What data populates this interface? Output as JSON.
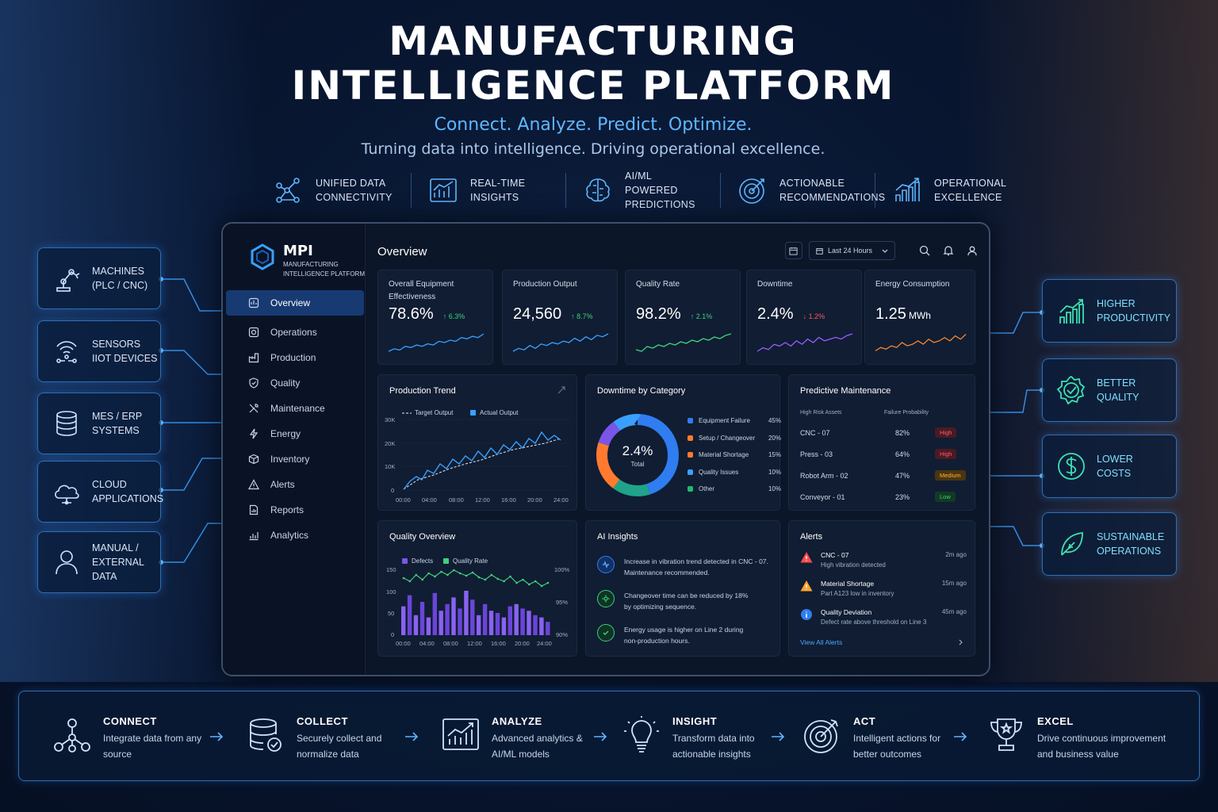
{
  "page": {
    "title_line1": "MANUFACTURING",
    "title_line2": "INTELLIGENCE PLATFORM",
    "tagline": "Connect. Analyze. Predict. Optimize.",
    "subtitle": "Turning data into intelligence. Driving operational excellence."
  },
  "features": [
    {
      "icon": "network-icon",
      "label": "Unified Data Connectivity"
    },
    {
      "icon": "bar-chart-icon",
      "label": "Real-Time Insights"
    },
    {
      "icon": "brain-icon",
      "label": "AI/ML Powered Predictions"
    },
    {
      "icon": "target-icon",
      "label": "Actionable Recommendations"
    },
    {
      "icon": "growth-chart-icon",
      "label": "Operational Excellence"
    }
  ],
  "sources": [
    {
      "icon": "robot-arm-icon",
      "label1": "MACHINES",
      "label2": "(PLC / CNC)"
    },
    {
      "icon": "sensor-icon",
      "label1": "SENSORS",
      "label2": "IIoT DEVICES"
    },
    {
      "icon": "database-icon",
      "label1": "MES / ERP",
      "label2": "SYSTEMS"
    },
    {
      "icon": "cloud-icon",
      "label1": "CLOUD",
      "label2": "APPLICATIONS"
    },
    {
      "icon": "user-icon",
      "label1": "MANUAL /",
      "label2": "EXTERNAL DATA"
    }
  ],
  "benefits": [
    {
      "icon": "growth-icon",
      "label1": "HIGHER",
      "label2": "PRODUCTIVITY"
    },
    {
      "icon": "quality-badge-icon",
      "label1": "BETTER",
      "label2": "QUALITY"
    },
    {
      "icon": "dollar-icon",
      "label1": "LOWER",
      "label2": "COSTS"
    },
    {
      "icon": "leaf-icon",
      "label1": "SUSTAINABLE",
      "label2": "OPERATIONS"
    }
  ],
  "dashboard": {
    "logo": {
      "name": "MPI",
      "line1": "MANUFACTURING",
      "line2": "INTELLIGENCE PLATFORM"
    },
    "nav": [
      "Overview",
      "Operations",
      "Production",
      "Quality",
      "Maintenance",
      "Energy",
      "Inventory",
      "Alerts",
      "Reports",
      "Analytics"
    ],
    "active_nav": "Overview",
    "header": {
      "title": "Overview",
      "range": "Last 24 Hours"
    },
    "kpis": [
      {
        "title": "Overall Equipment Effectiveness",
        "value": "78.6%",
        "unit": "",
        "delta": "↑ 6.3%",
        "delta_color": "#3fd07a",
        "spark_color": "#3aa0ff",
        "spark": [
          4,
          6,
          5,
          8,
          7,
          9,
          8,
          10,
          9,
          12,
          11,
          13,
          12,
          15,
          14,
          16,
          15,
          18
        ]
      },
      {
        "title": "Production Output",
        "value": "24,560",
        "unit": "",
        "delta": "↑ 8.7%",
        "delta_color": "#3fd07a",
        "spark_color": "#3aa0ff",
        "spark": [
          5,
          7,
          6,
          9,
          7,
          10,
          9,
          11,
          10,
          12,
          11,
          14,
          12,
          15,
          13,
          16,
          15,
          17
        ]
      },
      {
        "title": "Quality Rate",
        "value": "98.2%",
        "unit": "",
        "delta": "↑ 2.1%",
        "delta_color": "#3fd07a",
        "spark_color": "#3fd07a",
        "spark": [
          6,
          5,
          8,
          7,
          9,
          8,
          10,
          9,
          11,
          10,
          12,
          11,
          13,
          12,
          14,
          13,
          15,
          16
        ]
      },
      {
        "title": "Downtime",
        "value": "2.4%",
        "unit": "",
        "delta": "↓ 1.2%",
        "delta_color": "#ff5a5a",
        "spark_color": "#9b5cff",
        "spark": [
          5,
          7,
          6,
          9,
          8,
          10,
          8,
          11,
          9,
          12,
          10,
          13,
          11,
          12,
          13,
          12,
          14,
          15
        ]
      },
      {
        "title": "Energy Consumption",
        "value": "1.25",
        "unit": "MWh",
        "delta": "",
        "delta_color": "#3fd07a",
        "spark_color": "#ff8a2b",
        "spark": [
          6,
          8,
          7,
          9,
          8,
          11,
          9,
          10,
          12,
          10,
          13,
          11,
          12,
          14,
          12,
          15,
          13,
          16
        ]
      }
    ],
    "production_trend": {
      "title": "Production Trend",
      "legend_target": "Target Output",
      "legend_actual": "Actual Output",
      "y_ticks": [
        "30K",
        "20K",
        "10K",
        "0"
      ],
      "x_ticks": [
        "00:00",
        "04:00",
        "08:00",
        "12:00",
        "16:00",
        "20:00",
        "24:00"
      ]
    },
    "downtime": {
      "title": "Downtime by Category",
      "center_value": "2.4%",
      "center_label": "Total",
      "items": [
        {
          "name": "Equipment Failure",
          "pct": "45%",
          "color": "#2f7df0"
        },
        {
          "name": "Setup / Changeover",
          "pct": "20%",
          "color": "#ff7a2f"
        },
        {
          "name": "Material Shortage",
          "pct": "15%",
          "color": "#1fa38a"
        },
        {
          "name": "Quality Issues",
          "pct": "10%",
          "color": "#7a55e8"
        },
        {
          "name": "Other",
          "pct": "10%",
          "color": "#22b86f"
        }
      ]
    },
    "predictive": {
      "title": "Predictive Maintenance",
      "col1": "High Risk Assets",
      "col2": "Failure Probability",
      "rows": [
        {
          "asset": "CNC - 07",
          "prob": "82%",
          "risk": "High",
          "bg": "#4a1a24",
          "fg": "#ff5a6a"
        },
        {
          "asset": "Press - 03",
          "prob": "64%",
          "risk": "High",
          "bg": "#4a1a24",
          "fg": "#ff5a6a"
        },
        {
          "asset": "Robot Arm - 02",
          "prob": "47%",
          "risk": "Medium",
          "bg": "#4a3510",
          "fg": "#ffb23a"
        },
        {
          "asset": "Conveyor - 01",
          "prob": "23%",
          "risk": "Low",
          "bg": "#123a25",
          "fg": "#3fd07a"
        }
      ]
    },
    "quality_overview": {
      "title": "Quality Overview",
      "legend_defects": "Defects",
      "legend_rate": "Quality Rate",
      "y_left": [
        "150",
        "100",
        "50",
        "0"
      ],
      "y_right": [
        "100%",
        "95%",
        "90%"
      ],
      "x_ticks": [
        "00:00",
        "04:00",
        "08:00",
        "12:00",
        "16:00",
        "20:00",
        "24:00"
      ]
    },
    "ai_insights": {
      "title": "AI Insights",
      "items": [
        {
          "line1": "Increase in vibration trend detected in CNC - 07.",
          "line2": "Maintenance recommended.",
          "icon": "vibration-icon",
          "color": "#2f7df0"
        },
        {
          "line1": "Changeover time can be reduced by 18%",
          "line2": "by optimizing sequence.",
          "icon": "gear-icon",
          "color": "#3fd07a"
        },
        {
          "line1": "Energy usage is higher on Line 2 during",
          "line2": "non-production hours.",
          "icon": "check-icon",
          "color": "#3fd07a"
        }
      ]
    },
    "alerts": {
      "title": "Alerts",
      "items": [
        {
          "title": "CNC - 07",
          "desc": "High vibration detected",
          "time": "2m ago",
          "icon": "warning-icon",
          "color": "#ff4a4a"
        },
        {
          "title": "Material Shortage",
          "desc": "Part A123 low in inventory",
          "time": "15m ago",
          "icon": "warning-icon",
          "color": "#ffa32f"
        },
        {
          "title": "Quality Deviation",
          "desc": "Defect rate above threshold on Line 3",
          "time": "45m ago",
          "icon": "info-icon",
          "color": "#2f7df0"
        }
      ],
      "view_all": "View All Alerts"
    }
  },
  "flow": [
    {
      "icon": "network-icon",
      "title": "CONNECT",
      "desc": "Integrate data from any source"
    },
    {
      "icon": "database-check-icon",
      "title": "COLLECT",
      "desc": "Securely collect and normalize data"
    },
    {
      "icon": "analytics-icon",
      "title": "ANALYZE",
      "desc": "Advanced analytics & AI/ML models"
    },
    {
      "icon": "lightbulb-icon",
      "title": "INSIGHT",
      "desc": "Transform data into actionable insights"
    },
    {
      "icon": "target-icon",
      "title": "ACT",
      "desc": "Intelligent actions for better outcomes"
    },
    {
      "icon": "trophy-icon",
      "title": "EXCEL",
      "desc": "Drive continuous improvement and business value"
    }
  ]
}
